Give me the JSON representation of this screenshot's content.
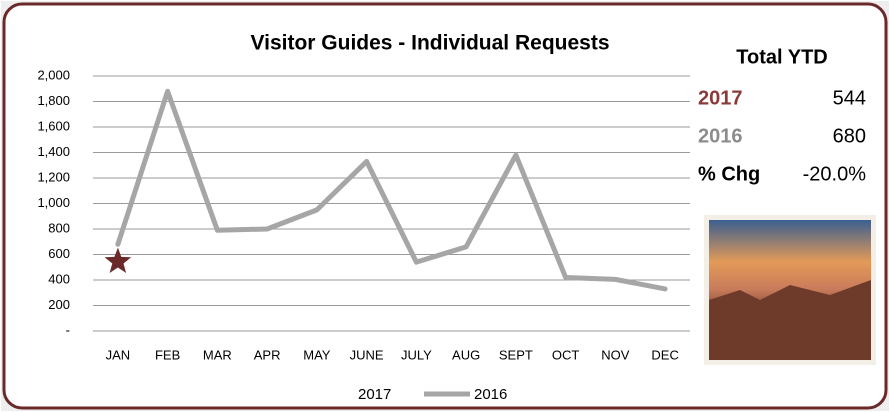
{
  "chart_data": {
    "type": "line",
    "title": "Visitor Guides - Individual Requests",
    "categories": [
      "JAN",
      "FEB",
      "MAR",
      "APR",
      "MAY",
      "JUNE",
      "JULY",
      "AUG",
      "SEPT",
      "OCT",
      "NOV",
      "DEC"
    ],
    "series": [
      {
        "name": "2017",
        "color": "#6b2a2a",
        "marker": "star",
        "values": [
          544,
          null,
          null,
          null,
          null,
          null,
          null,
          null,
          null,
          null,
          null,
          null
        ]
      },
      {
        "name": "2016",
        "color": "#a6a6a6",
        "values": [
          680,
          1880,
          790,
          800,
          950,
          1330,
          540,
          660,
          1380,
          420,
          405,
          330
        ]
      }
    ],
    "ylim": [
      0,
      2000
    ],
    "yticks": [
      {
        "value": 0,
        "label": "-"
      },
      200,
      400,
      600,
      800,
      {
        "value": 1000,
        "label": "1,000"
      },
      {
        "value": 1200,
        "label": "1,200"
      },
      {
        "value": 1400,
        "label": "1,400"
      },
      {
        "value": 1600,
        "label": "1,600"
      },
      {
        "value": 1800,
        "label": "1,800"
      },
      {
        "value": 2000,
        "label": "2,000"
      }
    ],
    "grid": true,
    "legend": "bottom"
  },
  "side_panel": {
    "title": "Total YTD",
    "rows": [
      {
        "label": "2017",
        "value": 544,
        "color": "#8b3a3a"
      },
      {
        "label": "2016",
        "value": 680,
        "color": "#8c8c8c"
      },
      {
        "label": "% Chg",
        "value": "-20.0%",
        "color": "#000000"
      }
    ]
  }
}
